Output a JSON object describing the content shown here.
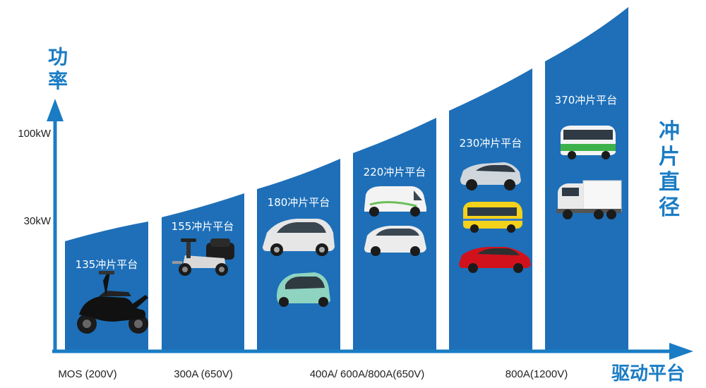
{
  "axis": {
    "y_title_chars": [
      "功",
      "率"
    ],
    "x_title": "驱动平台",
    "y_ticks": [
      "100kW",
      "30kW"
    ],
    "x_ticks": [
      "MOS (200V)",
      "300A (650V)",
      "400A/ 600A/800A(650V)",
      "800A(1200V)"
    ],
    "right_title_chars": [
      "冲",
      "片",
      "直",
      "径"
    ]
  },
  "platforms": [
    {
      "label": "135冲片平台",
      "vehicles": [
        "scooter-icon"
      ]
    },
    {
      "label": "155冲片平台",
      "vehicles": [
        "mobility-scooter-icon"
      ]
    },
    {
      "label": "180冲片平台",
      "vehicles": [
        "hatchback-car-icon",
        "micro-ev-icon"
      ]
    },
    {
      "label": "220冲片平台",
      "vehicles": [
        "delivery-van-icon",
        "small-car-icon"
      ]
    },
    {
      "label": "230冲片平台",
      "vehicles": [
        "sedan-car-icon",
        "school-bus-icon",
        "red-sedan-icon"
      ]
    },
    {
      "label": "370冲片平台",
      "vehicles": [
        "city-bus-icon",
        "box-truck-icon"
      ]
    }
  ],
  "colors": {
    "bar": "#1e6fb8",
    "accent": "#1a7cc4",
    "axis_arrow": "#1a7cc4"
  }
}
